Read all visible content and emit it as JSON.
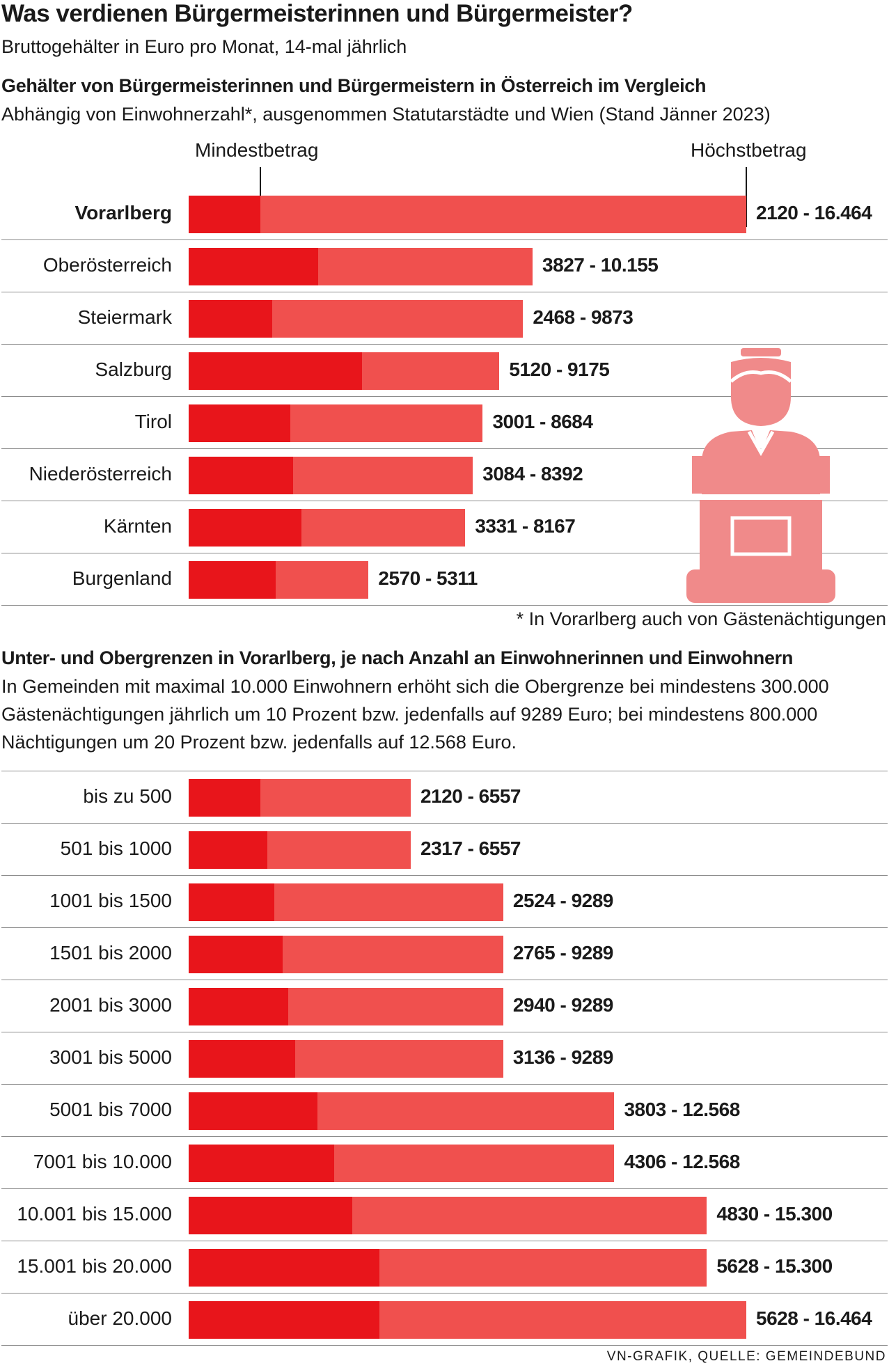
{
  "title": "Was verdienen Bürgermeisterinnen und Bürgermeister?",
  "subtitle": "Bruttogehälter in Euro pro Monat, 14-mal jährlich",
  "colors": {
    "min_bar": "#e8151b",
    "max_bar": "#f0504e",
    "icon": "#f08a8a"
  },
  "icon": "podium-speaker-icon",
  "chart_data": [
    {
      "type": "bar",
      "title": "Gehälter von Bürgermeisterinnen und Bürgermeistern in Österreich im Vergleich",
      "subtitle": "Abhängig von Einwohnerzahl*, ausgenommen Statutarstädte und Wien (Stand Jänner 2023)",
      "legend": [
        "Mindestbetrag",
        "Höchstbetrag"
      ],
      "categories": [
        "Vorarlberg",
        "Oberösterreich",
        "Steiermark",
        "Salzburg",
        "Tirol",
        "Niederösterreich",
        "Kärnten",
        "Burgenland"
      ],
      "series": [
        {
          "name": "Mindestbetrag",
          "values": [
            2120,
            3827,
            2468,
            5120,
            3001,
            3084,
            3331,
            2570
          ]
        },
        {
          "name": "Höchstbetrag",
          "values": [
            16464,
            10155,
            9873,
            9175,
            8684,
            8392,
            8167,
            5311
          ]
        }
      ],
      "labels": [
        "2120 - 16.464",
        "3827 - 10.155",
        "2468 - 9873",
        "5120 - 9175",
        "3001 - 8684",
        "3084 - 8392",
        "3331 - 8167",
        "2570 - 5311"
      ],
      "footnote": "* In Vorarlberg auch von Gästenächtigungen"
    },
    {
      "type": "bar",
      "title": "Unter- und Obergrenzen in Vorarlberg, je nach Anzahl an Einwohnerinnen und Einwohnern",
      "subtitle": "In Gemeinden mit maximal 10.000 Einwohnern erhöht sich die Obergrenze bei mindestens 300.000 Gästenächtigungen jährlich um 10 Prozent bzw. jedenfalls auf 9289 Euro; bei mindestens 800.000 Nächtigungen um 20 Prozent bzw. jedenfalls auf 12.568 Euro.",
      "categories": [
        "bis zu 500",
        "501 bis 1000",
        "1001 bis 1500",
        "1501 bis 2000",
        "2001 bis 3000",
        "3001 bis 5000",
        "5001 bis 7000",
        "7001 bis 10.000",
        "10.001 bis 15.000",
        "15.001 bis 20.000",
        "über 20.000"
      ],
      "series": [
        {
          "name": "Mindestbetrag",
          "values": [
            2120,
            2317,
            2524,
            2765,
            2940,
            3136,
            3803,
            4306,
            4830,
            5628,
            5628
          ]
        },
        {
          "name": "Höchstbetrag",
          "values": [
            6557,
            6557,
            9289,
            9289,
            9289,
            9289,
            12568,
            12568,
            15300,
            15300,
            16464
          ]
        }
      ],
      "labels": [
        "2120 - 6557",
        "2317 - 6557",
        "2524 - 9289",
        "2765 - 9289",
        "2940 - 9289",
        "3136 - 9289",
        "3803 - 12.568",
        "4306 - 12.568",
        "4830 - 15.300",
        "5628 - 15.300",
        "5628 - 16.464"
      ]
    }
  ],
  "source": "VN-GRAFIK, QUELLE: GEMEINDEBUND"
}
